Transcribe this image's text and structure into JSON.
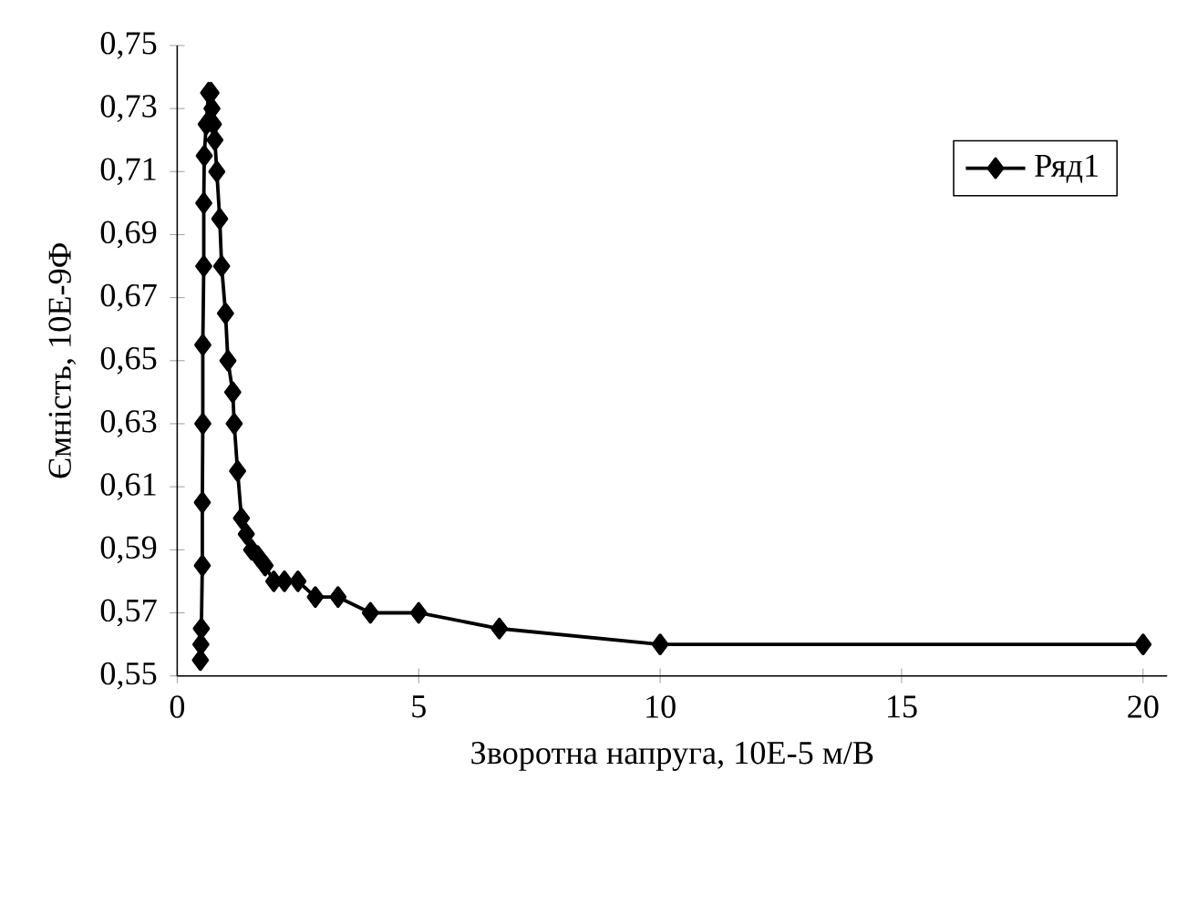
{
  "chart_data": {
    "type": "line",
    "xlabel": "Зворотна напруга, 10Е-5 м/В",
    "ylabel": "Ємність, 10Е-9Ф",
    "xlim": [
      0,
      20.5
    ],
    "ylim": [
      0.55,
      0.75
    ],
    "xticks": [
      0,
      5,
      10,
      15,
      20
    ],
    "yticks": [
      {
        "value": 0.55,
        "label": "0,55"
      },
      {
        "value": 0.57,
        "label": "0,57"
      },
      {
        "value": 0.59,
        "label": "0,59"
      },
      {
        "value": 0.61,
        "label": "0,61"
      },
      {
        "value": 0.63,
        "label": "0,63"
      },
      {
        "value": 0.65,
        "label": "0,65"
      },
      {
        "value": 0.67,
        "label": "0,67"
      },
      {
        "value": 0.69,
        "label": "0,69"
      },
      {
        "value": 0.71,
        "label": "0,71"
      },
      {
        "value": 0.73,
        "label": "0,73"
      },
      {
        "value": 0.75,
        "label": "0,75"
      }
    ],
    "marker": "diamond",
    "line_style": "solid",
    "legend": "top right",
    "grid": false,
    "series": [
      {
        "name": "Ряд1",
        "color": "#000000",
        "x": [
          0.48,
          0.49,
          0.5,
          0.52,
          0.52,
          0.53,
          0.53,
          0.55,
          0.55,
          0.56,
          0.6,
          0.65,
          0.7,
          0.72,
          0.75,
          0.78,
          0.82,
          0.88,
          0.92,
          1.0,
          1.05,
          1.15,
          1.18,
          1.25,
          1.33,
          1.43,
          1.54,
          1.67,
          1.82,
          2.0,
          2.22,
          2.5,
          2.86,
          3.33,
          4.0,
          5.0,
          6.67,
          10.0,
          20.0
        ],
        "values": [
          0.555,
          0.56,
          0.565,
          0.585,
          0.605,
          0.63,
          0.655,
          0.68,
          0.7,
          0.715,
          0.725,
          0.735,
          0.735,
          0.73,
          0.725,
          0.72,
          0.71,
          0.695,
          0.68,
          0.665,
          0.65,
          0.64,
          0.63,
          0.615,
          0.6,
          0.595,
          0.59,
          0.588,
          0.585,
          0.58,
          0.58,
          0.58,
          0.575,
          0.575,
          0.57,
          0.57,
          0.565,
          0.56,
          0.56
        ]
      }
    ]
  }
}
